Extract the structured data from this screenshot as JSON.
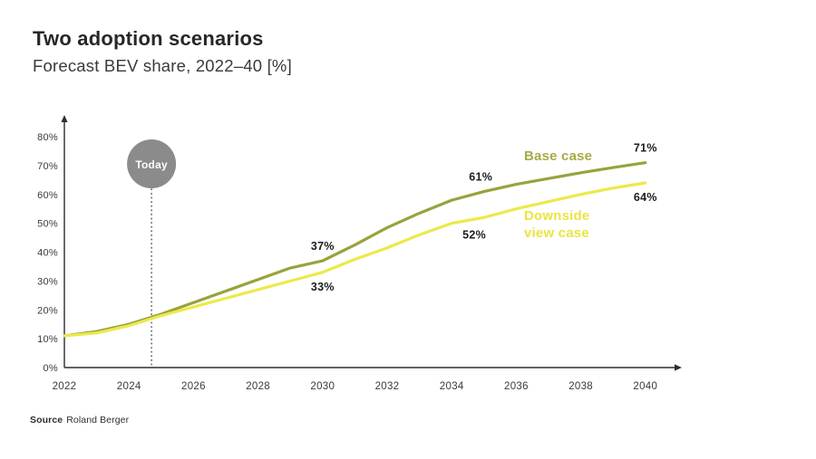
{
  "header": {
    "title": "Two adoption scenarios",
    "subtitle": "Forecast BEV share, 2022–40 [%]"
  },
  "source": {
    "label": "Source",
    "text": "Roland Berger"
  },
  "colors": {
    "axis": "#2e2e2e",
    "tick_text": "#3a3a3a",
    "annotation_text": "#1c1c1c",
    "base_line": "#99a23c",
    "downside_line": "#ece94b",
    "today_fill": "#8b8b8b",
    "today_dotted": "#4a4a4a"
  },
  "chart_data": {
    "type": "line",
    "title": "Two adoption scenarios",
    "subtitle": "Forecast BEV share, 2022–40 [%]",
    "xlabel": "",
    "ylabel": "",
    "xlim": [
      2022,
      2040
    ],
    "ylim": [
      0,
      80
    ],
    "grid": false,
    "tick_suffix": "%",
    "x_label_ticks": [
      2022,
      2024,
      2026,
      2028,
      2030,
      2032,
      2034,
      2036,
      2038,
      2040
    ],
    "y_ticks": [
      0,
      10,
      20,
      30,
      40,
      50,
      60,
      70,
      80
    ],
    "x": [
      2022,
      2023,
      2024,
      2025,
      2026,
      2027,
      2028,
      2029,
      2030,
      2031,
      2032,
      2033,
      2034,
      2035,
      2036,
      2037,
      2038,
      2039,
      2040
    ],
    "series": [
      {
        "name": "Base case",
        "color": "#99a23c",
        "values": [
          11,
          12.5,
          15,
          18.5,
          22.5,
          26.5,
          30.5,
          34.5,
          37,
          42.5,
          48.5,
          53.5,
          58,
          61,
          63.5,
          65.5,
          67.5,
          69.3,
          71
        ]
      },
      {
        "name": "Downside view case",
        "color": "#ece94b",
        "values": [
          11,
          12,
          14.5,
          18,
          21,
          24,
          27,
          30,
          33,
          37.5,
          41.5,
          46,
          50,
          52,
          55,
          57.5,
          60,
          62.2,
          64
        ]
      }
    ],
    "annotations": [
      {
        "text": "37%",
        "year": 2030,
        "value": 37,
        "placement": "above",
        "series": "Base case"
      },
      {
        "text": "33%",
        "year": 2030,
        "value": 33,
        "placement": "below",
        "series": "Downside view case"
      },
      {
        "text": "61%",
        "year": 2034.9,
        "value": 61,
        "placement": "above",
        "series": "Base case"
      },
      {
        "text": "52%",
        "year": 2034.7,
        "value": 51,
        "placement": "below",
        "series": "Downside view case"
      },
      {
        "text": "71%",
        "year": 2040,
        "value": 71,
        "placement": "above",
        "series": "Base case"
      },
      {
        "text": "64%",
        "year": 2040,
        "value": 64,
        "placement": "below",
        "series": "Downside view case"
      }
    ],
    "series_labels": [
      {
        "lines": [
          "Base case"
        ],
        "color": "#a6ab45"
      },
      {
        "lines": [
          "Downside",
          "view case"
        ],
        "color": "#ebe342"
      }
    ],
    "today": {
      "label": "Today",
      "year": 2024.7,
      "fill": "#8b8b8b",
      "text_color": "#ffffff"
    },
    "legend_position": "inline-right"
  }
}
